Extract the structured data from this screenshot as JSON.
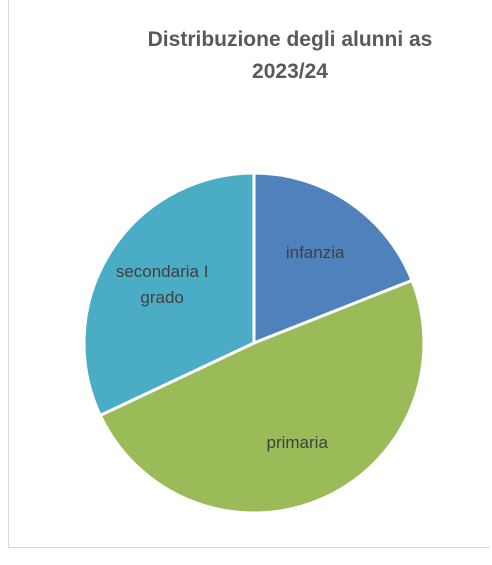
{
  "chart_data": {
    "type": "pie",
    "title": "Distribuzione degli alunni as 2023/24",
    "categories": [
      "infanzia",
      "primaria",
      "secondaria I grado"
    ],
    "values": [
      19,
      49,
      32
    ],
    "colors": [
      "#4f81bd",
      "#9bbb59",
      "#4bacc6"
    ]
  }
}
